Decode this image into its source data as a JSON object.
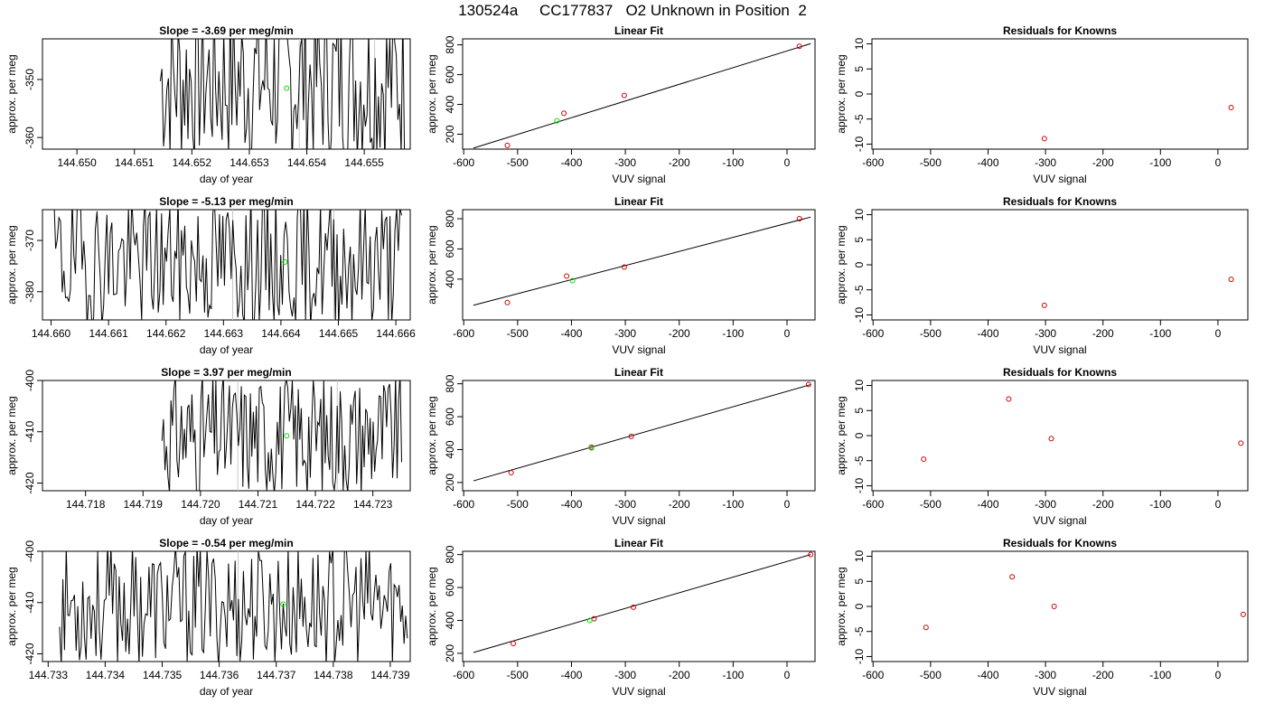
{
  "figure_title": "130524a     CC177837   O2 Unknown in Position  2",
  "chart_data": [
    {
      "type": "line",
      "panel": "timeseries",
      "row": 1,
      "title": "Slope =  -3.69  per meg/min",
      "xlabel": "day of year",
      "ylabel": "approx. per meg",
      "xlim": [
        144.6494,
        144.6558
      ],
      "ylim": [
        -362,
        -343
      ],
      "xticks": [
        144.65,
        144.651,
        144.652,
        144.653,
        144.654,
        144.655
      ],
      "xtick_labels": [
        "144.650",
        "144.651",
        "144.652",
        "144.653",
        "144.654",
        "144.655"
      ],
      "yticks": [
        -350,
        -360
      ],
      "ytick_labels": [
        "-350",
        "-360"
      ],
      "vlines": [
        144.65387,
        144.65518
      ],
      "trace": {
        "start": 144.65145,
        "end": 144.6557,
        "n": 150,
        "center": -350,
        "amp": 15,
        "seed": 7
      },
      "marker": {
        "x": 144.65365,
        "y": -351.5
      },
      "line_color": "#000000",
      "marker_color": "#00dd00"
    },
    {
      "type": "scatter",
      "panel": "fit",
      "row": 1,
      "title": "Linear Fit",
      "xlabel": "VUV signal",
      "ylabel": "approx. per meg",
      "xlim": [
        -602,
        52
      ],
      "ylim": [
        -100,
        -840
      ],
      "xticks": [
        -600,
        -500,
        -400,
        -300,
        -200,
        -100,
        0
      ],
      "xtick_labels": [
        "-600",
        "-500",
        "-400",
        "-300",
        "-200",
        "-100",
        "0"
      ],
      "yticks": [
        -200,
        -400,
        -600,
        -800
      ],
      "ytick_labels": [
        "200",
        "400",
        "600",
        "800"
      ],
      "knowns": {
        "x": [
          -519,
          -414,
          -302,
          23
        ],
        "y": [
          -125,
          -340,
          -460,
          -790
        ]
      },
      "unknown": {
        "x": [
          -427
        ],
        "y": [
          -290
        ]
      },
      "fit_line": {
        "x": [
          -582,
          44
        ],
        "y": [
          -107,
          -808
        ]
      },
      "known_color": "#cc0000",
      "unknown_color": "#00dd00",
      "line_color": "#000000"
    },
    {
      "type": "scatter",
      "panel": "residuals",
      "row": 1,
      "title": "Residuals for Knowns",
      "xlabel": "VUV signal",
      "ylabel": "approx. per meg",
      "xlim": [
        -602,
        52
      ],
      "ylim": [
        -11,
        11
      ],
      "xticks": [
        -600,
        -500,
        -400,
        -300,
        -200,
        -100,
        0
      ],
      "xtick_labels": [
        "-600",
        "-500",
        "-400",
        "-300",
        "-200",
        "-100",
        "0"
      ],
      "yticks": [
        10,
        5,
        0,
        -5,
        -10
      ],
      "ytick_labels": [
        "10",
        "5",
        "0",
        "-5",
        "-10"
      ],
      "points": {
        "x": [
          -302,
          23
        ],
        "y": [
          -8.9,
          -2.7
        ]
      },
      "point_color": "#cc0000"
    },
    {
      "type": "line",
      "panel": "timeseries",
      "row": 2,
      "title": "Slope =  -5.13  per meg/min",
      "xlabel": "day of year",
      "ylabel": "approx. per meg",
      "xlim": [
        144.65985,
        144.66625
      ],
      "ylim": [
        -385.5,
        -364
      ],
      "xticks": [
        144.66,
        144.661,
        144.662,
        144.663,
        144.664,
        144.665,
        144.666
      ],
      "xtick_labels": [
        "144.660",
        "144.661",
        "144.662",
        "144.663",
        "144.664",
        "144.665",
        "144.666"
      ],
      "yticks": [
        -370,
        -380
      ],
      "ytick_labels": [
        "-370",
        "-380"
      ],
      "vlines": [
        144.66316,
        144.66492
      ],
      "trace": {
        "start": 144.66005,
        "end": 144.6661,
        "n": 210,
        "center": -374,
        "amp": 13,
        "seed": 19
      },
      "marker": {
        "x": 144.66407,
        "y": -374.2
      },
      "line_color": "#000000",
      "marker_color": "#00dd00"
    },
    {
      "type": "scatter",
      "panel": "fit",
      "row": 2,
      "title": "Linear Fit",
      "xlabel": "VUV signal",
      "ylabel": "approx. per meg",
      "xlim": [
        -602,
        52
      ],
      "ylim": [
        -130,
        -860
      ],
      "xticks": [
        -600,
        -500,
        -400,
        -300,
        -200,
        -100,
        0
      ],
      "xtick_labels": [
        "-600",
        "-500",
        "-400",
        "-300",
        "-200",
        "-100",
        "0"
      ],
      "yticks": [
        -400,
        -600,
        -800
      ],
      "ytick_labels": [
        "400",
        "600",
        "800"
      ],
      "knowns": {
        "x": [
          -519,
          -409,
          -302,
          23
        ],
        "y": [
          -245,
          -420,
          -480,
          -800
        ]
      },
      "unknown": {
        "x": [
          -398
        ],
        "y": [
          -390
        ]
      },
      "fit_line": {
        "x": [
          -582,
          44
        ],
        "y": [
          -227,
          -811
        ]
      },
      "known_color": "#cc0000",
      "unknown_color": "#00dd00",
      "line_color": "#000000"
    },
    {
      "type": "scatter",
      "panel": "residuals",
      "row": 2,
      "title": "Residuals for Knowns",
      "xlabel": "VUV signal",
      "ylabel": "approx. per meg",
      "xlim": [
        -602,
        52
      ],
      "ylim": [
        -11,
        11
      ],
      "xticks": [
        -600,
        -500,
        -400,
        -300,
        -200,
        -100,
        0
      ],
      "xtick_labels": [
        "-600",
        "-500",
        "-400",
        "-300",
        "-200",
        "-100",
        "0"
      ],
      "yticks": [
        10,
        5,
        0,
        -5,
        -10
      ],
      "ytick_labels": [
        "10",
        "5",
        "0",
        "-5",
        "-10"
      ],
      "points": {
        "x": [
          -302,
          23
        ],
        "y": [
          -8.1,
          -2.9
        ]
      },
      "point_color": "#cc0000"
    },
    {
      "type": "line",
      "panel": "timeseries",
      "row": 3,
      "title": "Slope =  3.97  per meg/min",
      "xlabel": "day of year",
      "ylabel": "approx. per meg",
      "xlim": [
        144.71725,
        144.72365
      ],
      "ylim": [
        -421.5,
        -400
      ],
      "xticks": [
        144.718,
        144.719,
        144.72,
        144.721,
        144.722,
        144.723
      ],
      "xtick_labels": [
        "144.718",
        "144.719",
        "144.720",
        "144.721",
        "144.722",
        "144.723"
      ],
      "yticks": [
        -400,
        -410,
        -420
      ],
      "ytick_labels": [
        "-400",
        "-410",
        "-420"
      ],
      "vlines": [
        144.72065,
        144.72238
      ],
      "trace": {
        "start": 144.71933,
        "end": 144.7235,
        "n": 160,
        "center": -410.5,
        "amp": 12,
        "seed": 31
      },
      "marker": {
        "x": 144.7215,
        "y": -410.8
      },
      "line_color": "#000000",
      "marker_color": "#00dd00"
    },
    {
      "type": "scatter",
      "panel": "fit",
      "row": 3,
      "title": "Linear Fit",
      "xlabel": "VUV signal",
      "ylabel": "approx. per meg",
      "xlim": [
        -602,
        52
      ],
      "ylim": [
        -150,
        -820
      ],
      "xticks": [
        -600,
        -500,
        -400,
        -300,
        -200,
        -100,
        0
      ],
      "xtick_labels": [
        "-600",
        "-500",
        "-400",
        "-300",
        "-200",
        "-100",
        "0"
      ],
      "yticks": [
        -200,
        -400,
        -600,
        -800
      ],
      "ytick_labels": [
        "200",
        "400",
        "600",
        "800"
      ],
      "knowns": {
        "x": [
          -512,
          -363,
          -289,
          40
        ],
        "y": [
          -260,
          -415,
          -480,
          -795
        ]
      },
      "unknown": {
        "x": [
          -363
        ],
        "y": [
          -410
        ]
      },
      "fit_line": {
        "x": [
          -582,
          44
        ],
        "y": [
          -210,
          -795
        ]
      },
      "known_color": "#cc0000",
      "unknown_color": "#00dd00",
      "line_color": "#000000"
    },
    {
      "type": "scatter",
      "panel": "residuals",
      "row": 3,
      "title": "Residuals for Knowns",
      "xlabel": "VUV signal",
      "ylabel": "approx. per meg",
      "xlim": [
        -602,
        52
      ],
      "ylim": [
        -11,
        11
      ],
      "xticks": [
        -600,
        -500,
        -400,
        -300,
        -200,
        -100,
        0
      ],
      "xtick_labels": [
        "-600",
        "-500",
        "-400",
        "-300",
        "-200",
        "-100",
        "0"
      ],
      "yticks": [
        10,
        5,
        0,
        -5,
        -10
      ],
      "ytick_labels": [
        "10",
        "5",
        "0",
        "-5",
        "-10"
      ],
      "points": {
        "x": [
          -512,
          -364,
          -290,
          40
        ],
        "y": [
          -4.7,
          7.3,
          -0.6,
          -1.5
        ]
      },
      "point_color": "#cc0000"
    },
    {
      "type": "line",
      "panel": "timeseries",
      "row": 4,
      "title": "Slope =  -0.54  per meg/min",
      "xlabel": "day of year",
      "ylabel": "approx. per meg",
      "xlim": [
        144.7329,
        144.73935
      ],
      "ylim": [
        -421.5,
        -400
      ],
      "xticks": [
        144.733,
        144.734,
        144.735,
        144.736,
        144.737,
        144.738,
        144.739
      ],
      "xtick_labels": [
        "144.733",
        "144.734",
        "144.735",
        "144.736",
        "144.737",
        "144.738",
        "144.739"
      ],
      "yticks": [
        -400,
        -410,
        -420
      ],
      "ytick_labels": [
        "-400",
        "-410",
        "-420"
      ],
      "vlines": [
        144.73633
      ],
      "trace": {
        "start": 144.7332,
        "end": 144.7393,
        "n": 210,
        "center": -410.5,
        "amp": 12,
        "seed": 53
      },
      "marker": {
        "x": 144.73712,
        "y": -410.3
      },
      "line_color": "#000000",
      "marker_color": "#00dd00"
    },
    {
      "type": "scatter",
      "panel": "fit",
      "row": 4,
      "title": "Linear Fit",
      "xlabel": "VUV signal",
      "ylabel": "approx. per meg",
      "xlim": [
        -602,
        52
      ],
      "ylim": [
        -150,
        -820
      ],
      "xticks": [
        -600,
        -500,
        -400,
        -300,
        -200,
        -100,
        0
      ],
      "xtick_labels": [
        "-600",
        "-500",
        "-400",
        "-300",
        "-200",
        "-100",
        "0"
      ],
      "yticks": [
        -200,
        -400,
        -600,
        -800
      ],
      "ytick_labels": [
        "200",
        "400",
        "600",
        "800"
      ],
      "knowns": {
        "x": [
          -508,
          -358,
          -285,
          44
        ],
        "y": [
          -260,
          -410,
          -480,
          -800
        ]
      },
      "unknown": {
        "x": [
          -366
        ],
        "y": [
          -400
        ]
      },
      "fit_line": {
        "x": [
          -582,
          44
        ],
        "y": [
          -205,
          -800
        ]
      },
      "known_color": "#cc0000",
      "unknown_color": "#00dd00",
      "line_color": "#000000"
    },
    {
      "type": "scatter",
      "panel": "residuals",
      "row": 4,
      "title": "Residuals for Knowns",
      "xlabel": "VUV signal",
      "ylabel": "approx. per meg",
      "xlim": [
        -602,
        52
      ],
      "ylim": [
        -11,
        11
      ],
      "xticks": [
        -600,
        -500,
        -400,
        -300,
        -200,
        -100,
        0
      ],
      "xtick_labels": [
        "-600",
        "-500",
        "-400",
        "-300",
        "-200",
        "-100",
        "0"
      ],
      "yticks": [
        10,
        5,
        0,
        -5,
        -10
      ],
      "ytick_labels": [
        "10",
        "5",
        "0",
        "-5",
        "-10"
      ],
      "points": {
        "x": [
          -508,
          -358,
          -285,
          44
        ],
        "y": [
          -4.2,
          5.9,
          0.0,
          -1.6
        ]
      },
      "point_color": "#cc0000"
    }
  ]
}
